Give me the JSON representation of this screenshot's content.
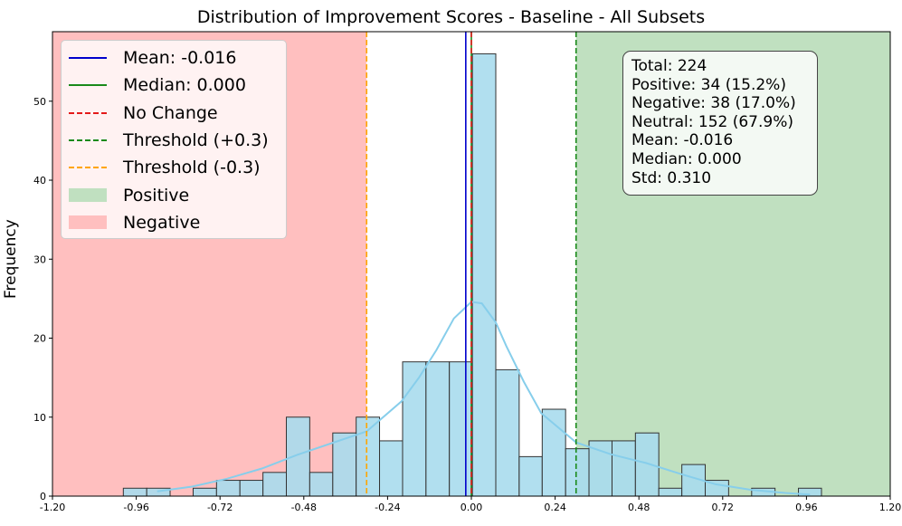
{
  "chart_data": {
    "type": "bar",
    "title": "Distribution of Improvement Scores - Baseline - All Subsets",
    "xlabel": "",
    "ylabel": "Frequency",
    "xlim": [
      -1.2,
      1.2
    ],
    "ylim": [
      0,
      58.8
    ],
    "xticks": [
      "-1.20",
      "-0.96",
      "-0.72",
      "-0.48",
      "-0.24",
      "0.00",
      "0.24",
      "0.48",
      "0.72",
      "0.96",
      "1.20"
    ],
    "xtick_values": [
      -1.2,
      -0.96,
      -0.72,
      -0.48,
      -0.24,
      0.0,
      0.24,
      0.48,
      0.72,
      0.96,
      1.2
    ],
    "yticks": [
      0,
      10,
      20,
      30,
      40,
      50
    ],
    "bin_width": 0.0667,
    "bins": [
      {
        "x0": -0.997,
        "x1": -0.93,
        "count": 1
      },
      {
        "x0": -0.93,
        "x1": -0.863,
        "count": 1
      },
      {
        "x0": -0.863,
        "x1": -0.797,
        "count": 0
      },
      {
        "x0": -0.797,
        "x1": -0.73,
        "count": 1
      },
      {
        "x0": -0.73,
        "x1": -0.663,
        "count": 2
      },
      {
        "x0": -0.663,
        "x1": -0.597,
        "count": 2
      },
      {
        "x0": -0.597,
        "x1": -0.53,
        "count": 3
      },
      {
        "x0": -0.53,
        "x1": -0.463,
        "count": 10
      },
      {
        "x0": -0.463,
        "x1": -0.397,
        "count": 3
      },
      {
        "x0": -0.397,
        "x1": -0.33,
        "count": 8
      },
      {
        "x0": -0.33,
        "x1": -0.263,
        "count": 10
      },
      {
        "x0": -0.263,
        "x1": -0.197,
        "count": 7
      },
      {
        "x0": -0.197,
        "x1": -0.13,
        "count": 17
      },
      {
        "x0": -0.13,
        "x1": -0.063,
        "count": 17
      },
      {
        "x0": -0.063,
        "x1": 0.003,
        "count": 17
      },
      {
        "x0": 0.003,
        "x1": 0.07,
        "count": 56
      },
      {
        "x0": 0.07,
        "x1": 0.137,
        "count": 16
      },
      {
        "x0": 0.137,
        "x1": 0.203,
        "count": 5
      },
      {
        "x0": 0.203,
        "x1": 0.27,
        "count": 11
      },
      {
        "x0": 0.27,
        "x1": 0.337,
        "count": 6
      },
      {
        "x0": 0.337,
        "x1": 0.403,
        "count": 7
      },
      {
        "x0": 0.403,
        "x1": 0.47,
        "count": 7
      },
      {
        "x0": 0.47,
        "x1": 0.537,
        "count": 8
      },
      {
        "x0": 0.537,
        "x1": 0.603,
        "count": 1
      },
      {
        "x0": 0.603,
        "x1": 0.67,
        "count": 4
      },
      {
        "x0": 0.67,
        "x1": 0.737,
        "count": 2
      },
      {
        "x0": 0.737,
        "x1": 0.803,
        "count": 0
      },
      {
        "x0": 0.803,
        "x1": 0.87,
        "count": 1
      },
      {
        "x0": 0.87,
        "x1": 0.937,
        "count": 0
      },
      {
        "x0": 0.937,
        "x1": 1.003,
        "count": 1
      }
    ],
    "kde": {
      "x": [
        -0.9,
        -0.8,
        -0.7,
        -0.6,
        -0.5,
        -0.4,
        -0.3,
        -0.2,
        -0.15,
        -0.1,
        -0.05,
        0.0,
        0.03,
        0.07,
        0.1,
        0.15,
        0.2,
        0.3,
        0.4,
        0.5,
        0.6,
        0.7,
        0.8,
        0.9,
        0.97
      ],
      "y": [
        0.6,
        1.2,
        2.2,
        3.5,
        5.2,
        6.7,
        8.2,
        12.0,
        15.0,
        18.5,
        22.5,
        24.6,
        24.4,
        22.0,
        19.0,
        14.5,
        10.5,
        6.8,
        5.3,
        4.2,
        2.8,
        1.5,
        0.8,
        0.4,
        0.2
      ],
      "color": "#87ceeb"
    },
    "regions": {
      "negative": {
        "x0": -1.2,
        "x1": -0.3,
        "color": "#ffbfbf"
      },
      "positive": {
        "x0": 0.3,
        "x1": 1.2,
        "color": "#c0e0c0"
      }
    },
    "vlines": [
      {
        "name": "mean",
        "x": -0.016,
        "color": "#0000cc",
        "style": "solid"
      },
      {
        "name": "median",
        "x": 0.0,
        "color": "#1a8a1a",
        "style": "solid"
      },
      {
        "name": "no-change",
        "x": 0.0,
        "color": "#e41a1a",
        "style": "dashed"
      },
      {
        "name": "threshold-pos",
        "x": 0.3,
        "color": "#1a8a1a",
        "style": "dashed"
      },
      {
        "name": "threshold-neg",
        "x": -0.3,
        "color": "#ffa500",
        "style": "dashed"
      }
    ],
    "bar_color": "#a8dced",
    "bar_edge": "#333333",
    "legend": [
      {
        "label": "Mean: -0.016",
        "kind": "line",
        "color": "#0000cc",
        "style": "solid"
      },
      {
        "label": "Median: 0.000",
        "kind": "line",
        "color": "#1a8a1a",
        "style": "solid"
      },
      {
        "label": "No Change",
        "kind": "line",
        "color": "#e41a1a",
        "style": "dashed"
      },
      {
        "label": "Threshold (+0.3)",
        "kind": "line",
        "color": "#1a8a1a",
        "style": "dashed"
      },
      {
        "label": "Threshold (-0.3)",
        "kind": "line",
        "color": "#ffa500",
        "style": "dashed"
      },
      {
        "label": "Positive",
        "kind": "patch",
        "color": "#c0e0c0"
      },
      {
        "label": "Negative",
        "kind": "patch",
        "color": "#ffbfbf"
      }
    ],
    "legend_position": "top-left",
    "stats": [
      "Total: 224",
      "Positive: 34 (15.2%)",
      "Negative: 38 (17.0%)",
      "Neutral: 152 (67.9%)",
      "Mean: -0.016",
      "Median: 0.000",
      "Std: 0.310"
    ],
    "stats_position": "top-right"
  }
}
